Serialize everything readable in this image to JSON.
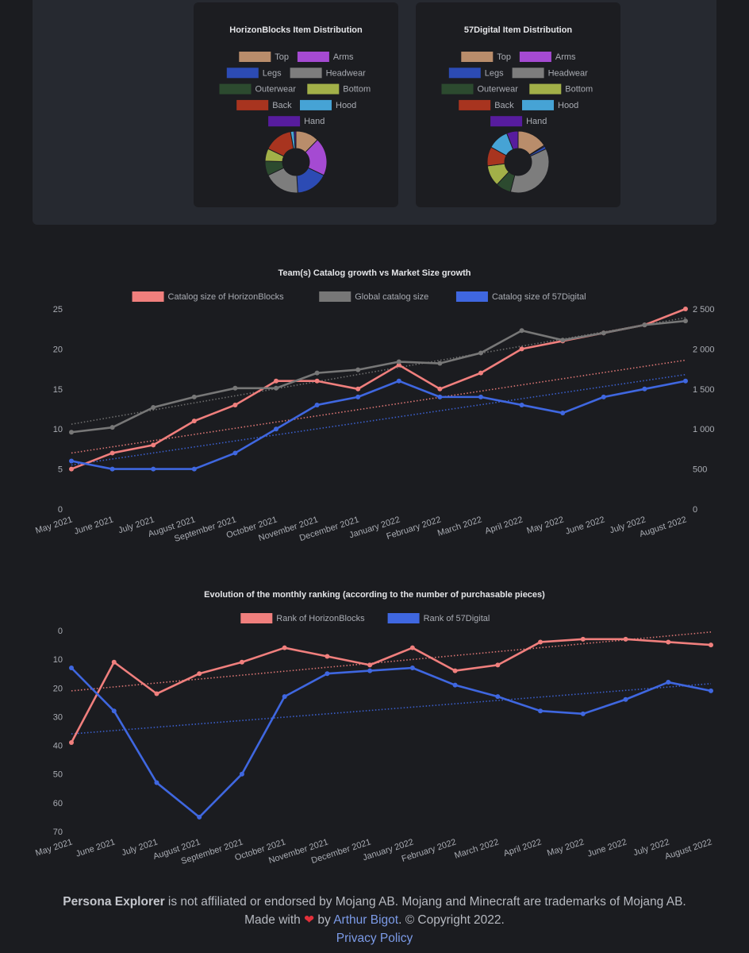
{
  "donuts": [
    {
      "title": "HorizonBlocks Item Distribution",
      "legend": [
        {
          "label": "Top",
          "color": "#b98d6b"
        },
        {
          "label": "Arms",
          "color": "#a54ad2"
        },
        {
          "label": "Legs",
          "color": "#2c4bb4"
        },
        {
          "label": "Headwear",
          "color": "#7d7d7d"
        },
        {
          "label": "Outerwear",
          "color": "#2c4a2f"
        },
        {
          "label": "Bottom",
          "color": "#a2b048"
        },
        {
          "label": "Back",
          "color": "#a8341f"
        },
        {
          "label": "Hood",
          "color": "#46a3d5"
        },
        {
          "label": "Hand",
          "color": "#571c9e"
        }
      ],
      "values": [
        13,
        21,
        18,
        20,
        8,
        7,
        16,
        2,
        1
      ]
    },
    {
      "title": "57Digital Item Distribution",
      "legend": [
        {
          "label": "Top",
          "color": "#b98d6b"
        },
        {
          "label": "Arms",
          "color": "#a54ad2"
        },
        {
          "label": "Legs",
          "color": "#2c4bb4"
        },
        {
          "label": "Headwear",
          "color": "#7d7d7d"
        },
        {
          "label": "Outerwear",
          "color": "#2c4a2f"
        },
        {
          "label": "Bottom",
          "color": "#a2b048"
        },
        {
          "label": "Back",
          "color": "#a8341f"
        },
        {
          "label": "Hood",
          "color": "#46a3d5"
        },
        {
          "label": "Hand",
          "color": "#571c9e"
        }
      ],
      "values": [
        16,
        0.5,
        1.5,
        36,
        8,
        11,
        10,
        11,
        6
      ]
    }
  ],
  "chart_data": [
    {
      "type": "line",
      "title": "Team(s) Catalog growth vs Market Size growth",
      "categories": [
        "May 2021",
        "June 2021",
        "July 2021",
        "August 2021",
        "September 2021",
        "October 2021",
        "November 2021",
        "December 2021",
        "January 2022",
        "February 2022",
        "March 2022",
        "April 2022",
        "May 2022",
        "June 2022",
        "July 2022",
        "August 2022"
      ],
      "y_left": {
        "ylim": [
          0,
          25
        ],
        "ticks": [
          "0",
          "5",
          "10",
          "15",
          "20",
          "25"
        ]
      },
      "y_right": {
        "ylim": [
          0,
          2500
        ],
        "ticks": [
          "0",
          "500",
          "1 000",
          "1 500",
          "2 000",
          "2 500"
        ]
      },
      "series": [
        {
          "name": "Catalog size of HorizonBlocks",
          "axis": "left",
          "color": "#f07f7d",
          "values": [
            5,
            7,
            8,
            11,
            13,
            16,
            16,
            15,
            18,
            15,
            17,
            20,
            21,
            22,
            23,
            25
          ],
          "trend": [
            7,
            18.6
          ]
        },
        {
          "name": "Global catalog size",
          "axis": "right",
          "color": "#777777",
          "values": [
            960,
            1020,
            1270,
            1400,
            1510,
            1510,
            1700,
            1740,
            1840,
            1820,
            1950,
            2230,
            2110,
            2200,
            2300,
            2350
          ],
          "trend": [
            1060,
            2390
          ]
        },
        {
          "name": "Catalog size of 57Digital",
          "axis": "left",
          "color": "#3f67e0",
          "values": [
            6,
            5,
            5,
            5,
            7,
            10,
            13,
            14,
            16,
            14,
            14,
            13,
            12,
            14,
            15,
            16
          ],
          "trend": [
            5.5,
            16.8
          ]
        }
      ]
    },
    {
      "type": "line",
      "title": "Evolution of the monthly ranking (according to the number of purchasable pieces)",
      "categories": [
        "May 2021",
        "June 2021",
        "July 2021",
        "August 2021",
        "September 2021",
        "October 2021",
        "November 2021",
        "December 2021",
        "January 2022",
        "February 2022",
        "March 2022",
        "April 2022",
        "May 2022",
        "June 2022",
        "July 2022",
        "August 2022"
      ],
      "y": {
        "ylim": [
          0,
          70
        ],
        "reversed": true,
        "ticks": [
          "0",
          "10",
          "20",
          "30",
          "40",
          "50",
          "60",
          "70"
        ]
      },
      "series": [
        {
          "name": "Rank of HorizonBlocks",
          "color": "#f07f7d",
          "values": [
            39,
            11,
            22,
            15,
            11,
            6,
            9,
            12,
            6,
            14,
            12,
            4,
            3,
            3,
            4,
            5
          ],
          "trend": [
            21,
            0.5
          ]
        },
        {
          "name": "Rank of 57Digital",
          "color": "#3f67e0",
          "values": [
            13,
            28,
            53,
            65,
            50,
            23,
            15,
            14,
            13,
            19,
            23,
            28,
            29,
            24,
            18,
            21
          ],
          "trend": [
            36,
            18.5
          ]
        }
      ]
    }
  ],
  "footer": {
    "brand": "Persona Explorer",
    "disclaimer": " is not affiliated or endorsed by Mojang AB. Mojang and Minecraft are trademarks of Mojang AB.",
    "made_with": "Made with ",
    "heart": "❤",
    "by": " by ",
    "author": "Arthur Bigot",
    "copyright": ". © Copyright 2022.",
    "privacy": "Privacy Policy"
  }
}
